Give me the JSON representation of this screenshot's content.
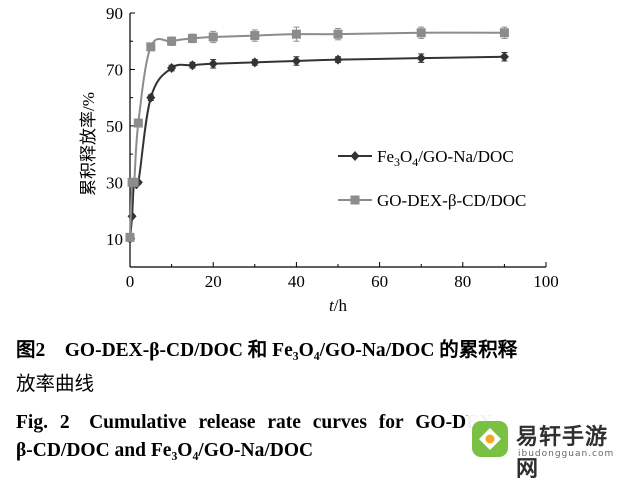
{
  "chart_data": {
    "type": "line",
    "xlabel": {
      "italic": "t",
      "rest": "/h"
    },
    "ylabel": "累积释放率/%",
    "xlim": [
      0,
      100
    ],
    "ylim": [
      0,
      90
    ],
    "x_ticks": [
      0,
      20,
      40,
      60,
      80,
      100
    ],
    "y_ticks": [
      10,
      30,
      50,
      70,
      90
    ],
    "legend_position": "right-middle",
    "series": [
      {
        "name": "Fe3O4/GO-Na/DOC",
        "name_parts": [
          "Fe",
          "3",
          "O",
          "4",
          "/GO-Na/DOC"
        ],
        "marker": "diamond",
        "color": "#333333",
        "x": [
          0,
          0.5,
          1,
          2,
          5,
          10,
          15,
          20,
          30,
          40,
          50,
          70,
          90
        ],
        "y": [
          10,
          18,
          30,
          30,
          60,
          70.5,
          71.5,
          72,
          72.5,
          73,
          73.5,
          74,
          74.5
        ],
        "err": [
          0,
          0,
          0.5,
          0.5,
          1,
          1,
          1,
          1.5,
          1,
          1.5,
          1,
          1.5,
          1.5
        ]
      },
      {
        "name": "GO-DEX-β-CD/DOC",
        "name_parts": [
          "GO-DEX-β-CD/DOC"
        ],
        "marker": "square",
        "color": "#8c8c8c",
        "x": [
          0,
          0.5,
          1,
          2,
          5,
          10,
          15,
          20,
          30,
          40,
          50,
          70,
          90
        ],
        "y": [
          10.5,
          30,
          30,
          51,
          78,
          80,
          81,
          81.5,
          82,
          82.5,
          82.5,
          83,
          83
        ],
        "err": [
          0,
          0,
          0.5,
          1,
          1,
          1.5,
          1.5,
          2,
          2,
          2.5,
          2,
          2,
          2
        ]
      }
    ]
  },
  "caption": {
    "cn_line1": "图2　GO-DEX-β-CD/DOC 和 Fe₃O₄/GO-Na/DOC 的累积释",
    "cn_line2": "放率曲线",
    "en_line1": "Fig. 2　Cumulative release rate curves for GO-DEX-",
    "en_line2": "β-CD/DOC and Fe₃O₄/GO-Na/DOC"
  },
  "watermark": {
    "title": "易轩手游网",
    "url": "ibudongguan.com"
  }
}
